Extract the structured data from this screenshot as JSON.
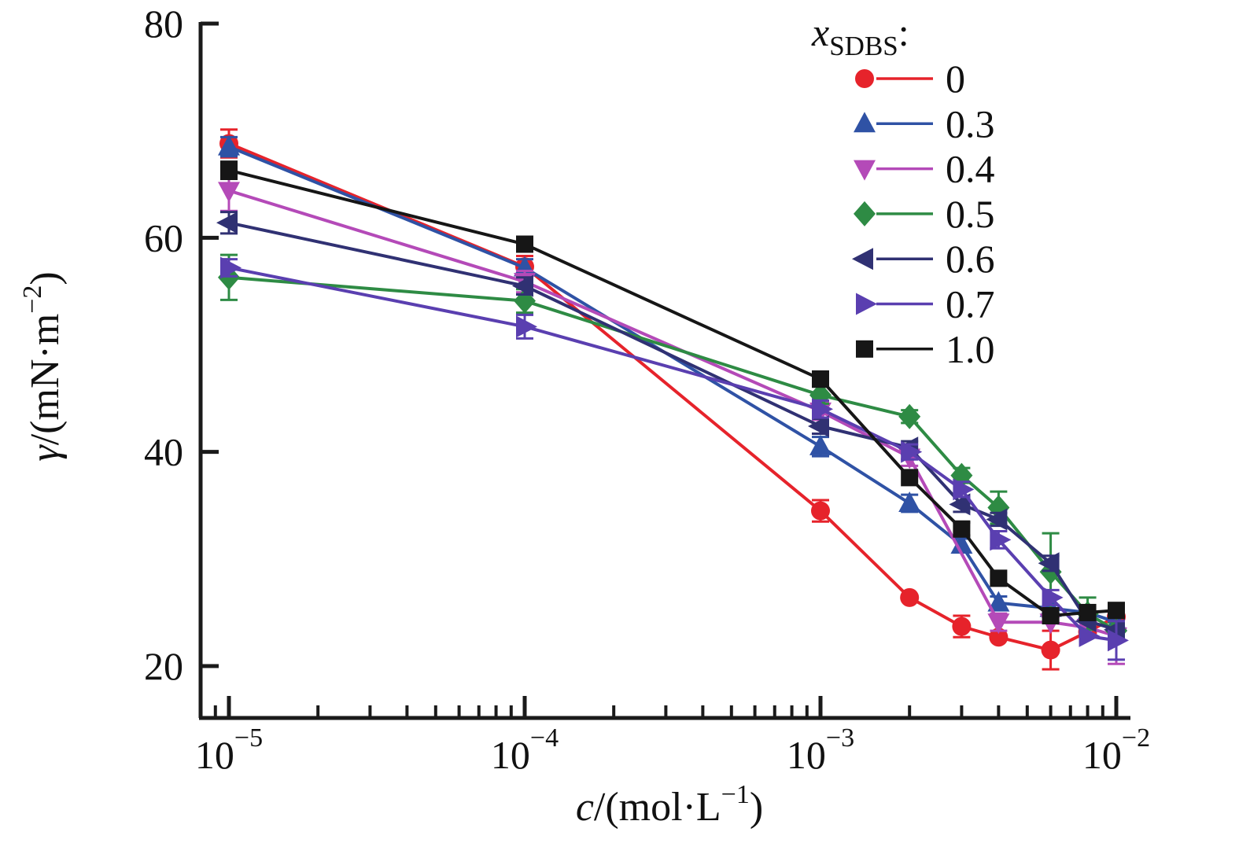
{
  "chart_data": {
    "type": "line",
    "x_scale": "log",
    "xlim": [
      7.5e-06,
      0.0115
    ],
    "ylim": [
      15,
      80
    ],
    "grid": false,
    "y_ticks": [
      20,
      40,
      60,
      80
    ],
    "x_tick_base": "10",
    "x_tick_exponents": [
      "−5",
      "−4",
      "−3",
      "−2"
    ],
    "xlabel": {
      "var": "c",
      "rest": "/(mol·L",
      "sup": "−1",
      "close": ")"
    },
    "ylabel": {
      "var": "γ",
      "rest": "/(mN·m",
      "sup": "−2",
      "close": ")"
    },
    "legend": {
      "position": "top-right",
      "title": {
        "var": "x",
        "sub": "SDBS",
        "colon": ":"
      },
      "entries": [
        "0",
        "0.3",
        "0.4",
        "0.5",
        "0.6",
        "0.7",
        "1.0"
      ]
    },
    "series": [
      {
        "name": "0",
        "color": "#e6232b",
        "marker": "circle",
        "points": [
          [
            1e-05,
            68.8,
            1.3
          ],
          [
            0.0001,
            57.3,
            1.0
          ],
          [
            0.001,
            34.5,
            1.0
          ],
          [
            0.002,
            26.4,
            0
          ],
          [
            0.003,
            23.7,
            1.0
          ],
          [
            0.004,
            22.7,
            0
          ],
          [
            0.006,
            21.5,
            1.8
          ],
          [
            0.008,
            23.2,
            0
          ],
          [
            0.01,
            24.6,
            0.5
          ]
        ]
      },
      {
        "name": "0.3",
        "color": "#2f52a5",
        "marker": "triangle-up",
        "points": [
          [
            1e-05,
            68.5,
            0.9
          ],
          [
            0.0001,
            57.2,
            0.8
          ],
          [
            0.001,
            40.5,
            0.9
          ],
          [
            0.002,
            35.2,
            0.8
          ],
          [
            0.003,
            31.3,
            0.6
          ],
          [
            0.004,
            25.9,
            0.6
          ],
          [
            0.006,
            25.4,
            0
          ],
          [
            0.008,
            25.0,
            0
          ],
          [
            0.01,
            24.1,
            0.8
          ]
        ]
      },
      {
        "name": "0.4",
        "color": "#b44ab8",
        "marker": "triangle-down",
        "points": [
          [
            1e-05,
            64.4,
            1.9
          ],
          [
            0.0001,
            55.9,
            1.0
          ],
          [
            0.001,
            43.8,
            0.8
          ],
          [
            0.002,
            39.5,
            0.8
          ],
          [
            0.004,
            24.1,
            0.8
          ],
          [
            0.006,
            24.1,
            0
          ],
          [
            0.008,
            23.6,
            0
          ],
          [
            0.01,
            22.8,
            2.6
          ]
        ]
      },
      {
        "name": "0.5",
        "color": "#2e8b44",
        "marker": "diamond",
        "points": [
          [
            1e-05,
            56.3,
            2.1
          ],
          [
            0.0001,
            54.1,
            1.1
          ],
          [
            0.001,
            45.3,
            0.8
          ],
          [
            0.002,
            43.3,
            0.6
          ],
          [
            0.003,
            37.8,
            0.7
          ],
          [
            0.004,
            34.8,
            1.5
          ],
          [
            0.006,
            28.8,
            3.6
          ],
          [
            0.008,
            24.9,
            1.5
          ],
          [
            0.01,
            23.3,
            0.8
          ]
        ]
      },
      {
        "name": "0.6",
        "color": "#303173",
        "marker": "triangle-left",
        "points": [
          [
            1e-05,
            61.4,
            1.0
          ],
          [
            0.0001,
            55.5,
            0.8
          ],
          [
            0.001,
            42.4,
            0.7
          ],
          [
            0.002,
            40.4,
            0.6
          ],
          [
            0.003,
            35.1,
            0.7
          ],
          [
            0.004,
            33.7,
            0.6
          ],
          [
            0.006,
            29.6,
            0.7
          ],
          [
            0.008,
            24.2,
            0
          ],
          [
            0.01,
            23.4,
            0.8
          ]
        ]
      },
      {
        "name": "0.7",
        "color": "#5a3fb0",
        "marker": "triangle-right",
        "points": [
          [
            1e-05,
            57.2,
            0.8
          ],
          [
            0.0001,
            51.7,
            1.1
          ],
          [
            0.001,
            44.0,
            0.8
          ],
          [
            0.002,
            40.0,
            0.7
          ],
          [
            0.003,
            36.5,
            0.7
          ],
          [
            0.004,
            31.8,
            0.8
          ],
          [
            0.006,
            26.4,
            0.7
          ],
          [
            0.008,
            22.8,
            0
          ],
          [
            0.01,
            22.4,
            1.8
          ]
        ]
      },
      {
        "name": "1.0",
        "color": "#161616",
        "marker": "square",
        "points": [
          [
            1e-05,
            66.3,
            0.8
          ],
          [
            0.0001,
            59.4,
            0.6
          ],
          [
            0.001,
            46.8,
            0.7
          ],
          [
            0.002,
            37.6,
            0
          ],
          [
            0.003,
            32.8,
            0.6
          ],
          [
            0.004,
            28.2,
            0
          ],
          [
            0.006,
            24.7,
            0
          ],
          [
            0.008,
            25.0,
            0
          ],
          [
            0.01,
            25.2,
            0.6
          ]
        ]
      }
    ]
  }
}
